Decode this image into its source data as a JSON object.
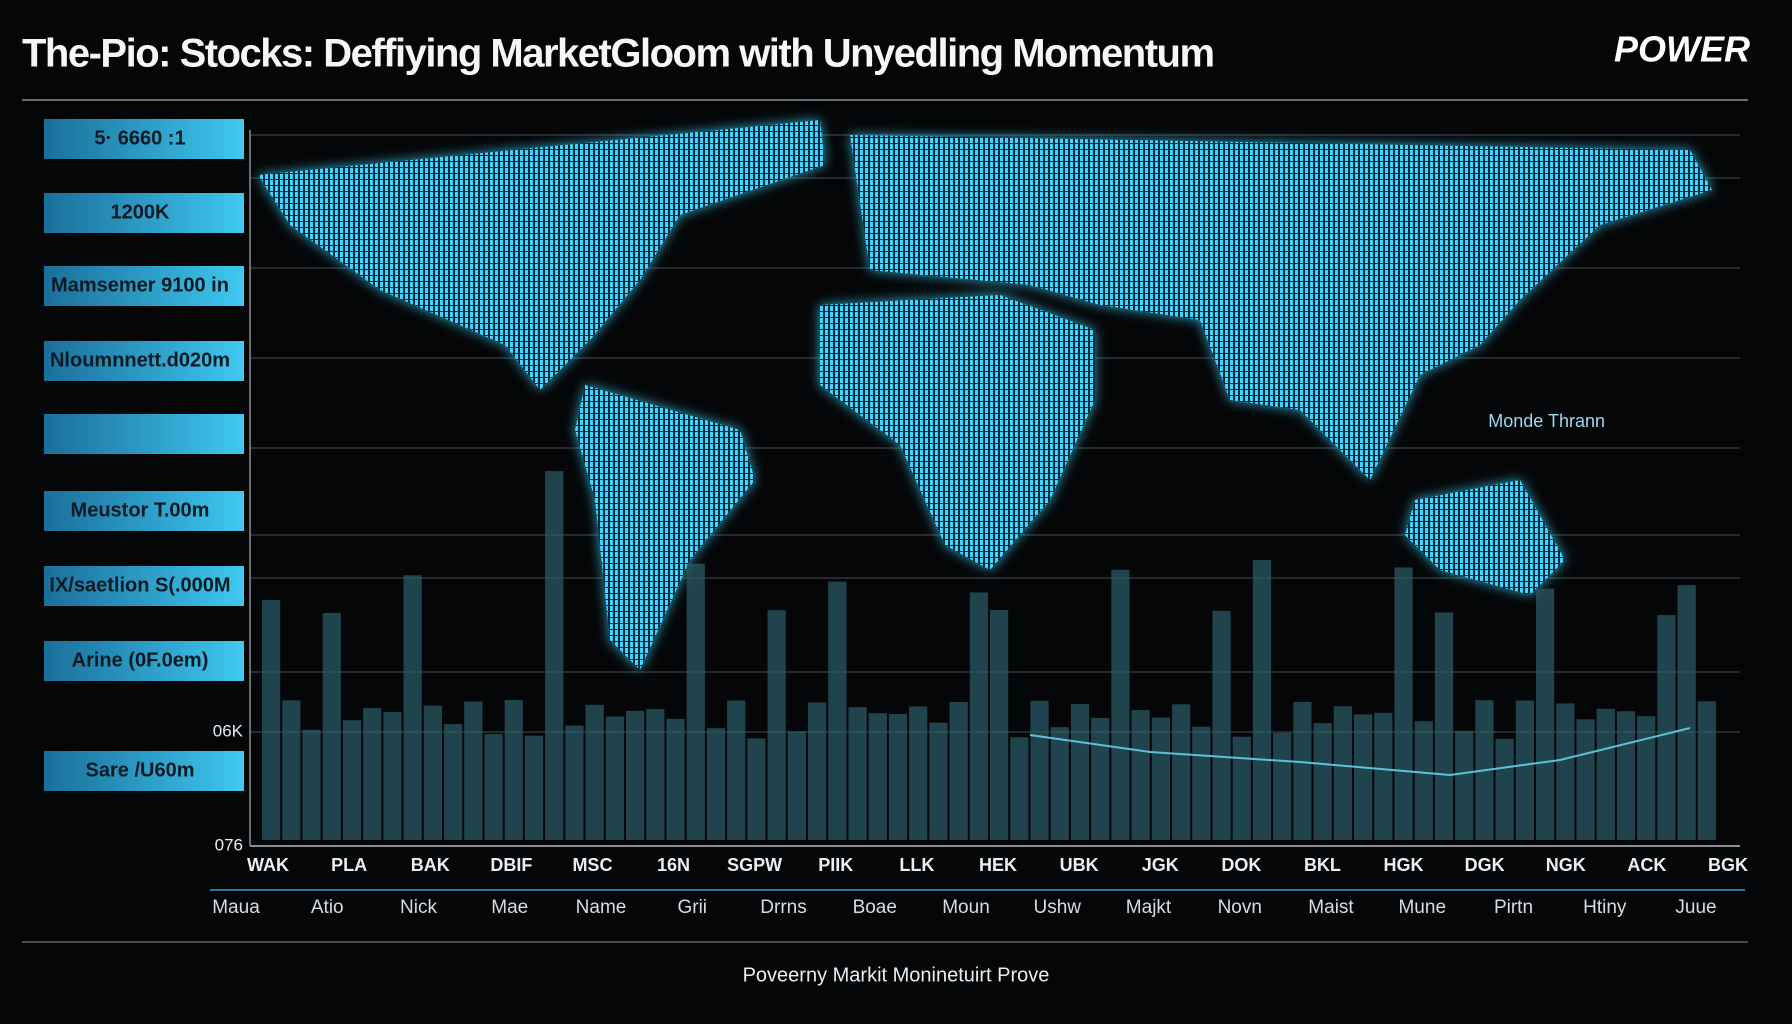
{
  "header": {
    "title": "The-Pio: Stocks: Deffiying MarketGloom with Unyedling Momentum",
    "logo": "POWER"
  },
  "side_labels": [
    "5· 6660 :1",
    "1200K",
    "Mamsemer 9100 in",
    "Nloumnnett.d020m",
    "",
    "Meustor T.00m",
    "IX/saetlion S(.000M",
    "Arine (0F.0em)",
    "Sare /U60m"
  ],
  "axis": {
    "labels": [
      "06K",
      "076"
    ]
  },
  "map": {
    "annotation": "Monde Thrann"
  },
  "x_labels": {
    "top": [
      "WAK",
      "PLA",
      "BAK",
      "DBIF",
      "MSC",
      "16N",
      "SGPW",
      "PIIK",
      "LLK",
      "HEK",
      "UBK",
      "JGK",
      "DOK",
      "BKL",
      "HGK",
      "DGK",
      "NGK",
      "ACK",
      "BGK"
    ],
    "bottom": [
      "Maua",
      "Atio",
      "Nick",
      "Mae",
      "Name",
      "Grii",
      "Drrns",
      "Boae",
      "Moun",
      "Ushw",
      "Majkt",
      "Novn",
      "Maist",
      "Mune",
      "Pirtn",
      "Htiny",
      "Juue"
    ]
  },
  "footer": {
    "caption": "Poveerny Markit Moninetuirt Prove"
  }
}
